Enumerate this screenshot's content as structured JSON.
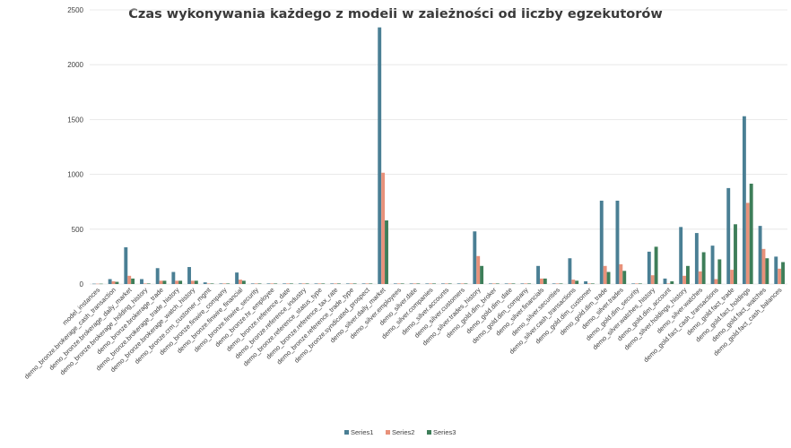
{
  "chart_data": {
    "type": "bar",
    "title": "Czas wykonywania każdego z modeli w zależności od liczby egzekutorów",
    "xlabel": "",
    "ylabel": "",
    "ylim": [
      0,
      2500
    ],
    "yticks": [
      0,
      500,
      1000,
      1500,
      2000,
      2500
    ],
    "grid": true,
    "legend_position": "bottom",
    "categories": [
      "model_instances",
      "demo_bronze.brokerage_cash_transaction",
      "demo_bronze.brokerage_daily_market",
      "demo_bronze.brokerage_holding_history",
      "demo_bronze.brokerage_trade",
      "demo_bronze.brokerage_trade_history",
      "demo_bronze.brokerage_watch_history",
      "demo_bronze.crm_customer_mgmt",
      "demo_bronze.finwire_company",
      "demo_bronze.finwire_financial",
      "demo_bronze.finwire_security",
      "demo_bronze.hr_employee",
      "demo_bronze.reference_date",
      "demo_bronze.reference_industry",
      "demo_bronze.reference_status_type",
      "demo_bronze.reference_tax_rate",
      "demo_bronze.reference_trade_type",
      "demo_bronze.syndicated_prospect",
      "demo_silver.daily_market",
      "demo_silver.employees",
      "demo_silver.date",
      "demo_silver.companies",
      "demo_silver.accounts",
      "demo_silver.customers",
      "demo_silver.trades_history",
      "demo_gold.dim_broker",
      "demo_gold.dim_date",
      "demo_gold.dim_company",
      "demo_silver.financials",
      "demo_silver.securities",
      "demo_silver.cash_transactions",
      "demo_gold.dim_customer",
      "demo_gold.dim_trade",
      "demo_silver.trades",
      "demo_gold.dim_security",
      "demo_silver.watches_history",
      "demo_gold.dim_account",
      "demo_silver.holdings_history",
      "demo_silver.watches",
      "demo_gold.fact_cash_transactions",
      "demo_gold.fact_trade",
      "demo_gold.fact_holdings",
      "demo_gold.fact_watches",
      "demo_gold.fact_cash_balances"
    ],
    "series": [
      {
        "name": "Series1",
        "color": "#4a7f94",
        "values": [
          3,
          45,
          335,
          45,
          145,
          110,
          155,
          15,
          5,
          105,
          5,
          5,
          5,
          5,
          5,
          5,
          5,
          5,
          2340,
          5,
          5,
          5,
          5,
          5,
          480,
          5,
          5,
          5,
          165,
          5,
          235,
          25,
          760,
          760,
          5,
          295,
          50,
          520,
          465,
          350,
          875,
          1530,
          530,
          250
        ]
      },
      {
        "name": "Series2",
        "color": "#e8917a",
        "values": [
          3,
          25,
          75,
          5,
          30,
          30,
          30,
          5,
          5,
          40,
          5,
          5,
          5,
          5,
          5,
          5,
          5,
          5,
          1015,
          5,
          5,
          5,
          5,
          5,
          255,
          5,
          5,
          5,
          50,
          5,
          40,
          5,
          165,
          180,
          5,
          80,
          5,
          75,
          115,
          45,
          130,
          740,
          320,
          140
        ]
      },
      {
        "name": "Series3",
        "color": "#3e7e59",
        "values": [
          3,
          20,
          50,
          5,
          30,
          30,
          30,
          5,
          5,
          30,
          5,
          5,
          5,
          5,
          5,
          5,
          5,
          5,
          580,
          5,
          5,
          5,
          5,
          5,
          165,
          5,
          5,
          5,
          50,
          5,
          30,
          5,
          110,
          120,
          5,
          340,
          25,
          165,
          290,
          225,
          545,
          915,
          235,
          200
        ]
      }
    ]
  }
}
